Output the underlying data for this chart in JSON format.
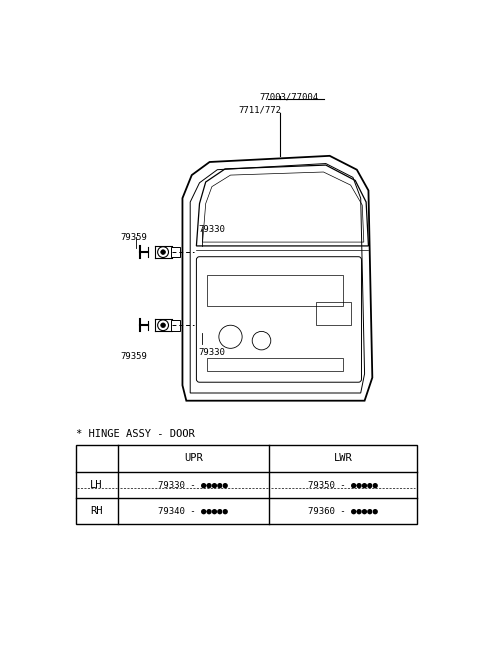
{
  "bg_color": "#ffffff",
  "title_top1": "77003/77004",
  "title_top2": "7711/772",
  "label_79330_upper": "79330",
  "label_79359_upper": "79359",
  "label_79330_lower": "79330",
  "label_79359_lower": "79359",
  "hinge_title": "* HINGE ASSY - DOOR",
  "col0_header": "",
  "col1_header": "UPR",
  "col2_header": "LWR",
  "row1_col0": "LH",
  "row1_col1": "79330 - ●●●●●",
  "row1_col2": "79350 - ●●●●●",
  "row2_col0": "RH",
  "row2_col1": "79340 - ●●●●●",
  "row2_col2": "79360 - ●●●●●",
  "font_size_small": 6.5,
  "font_size_med": 7.5,
  "font_size_large": 8
}
